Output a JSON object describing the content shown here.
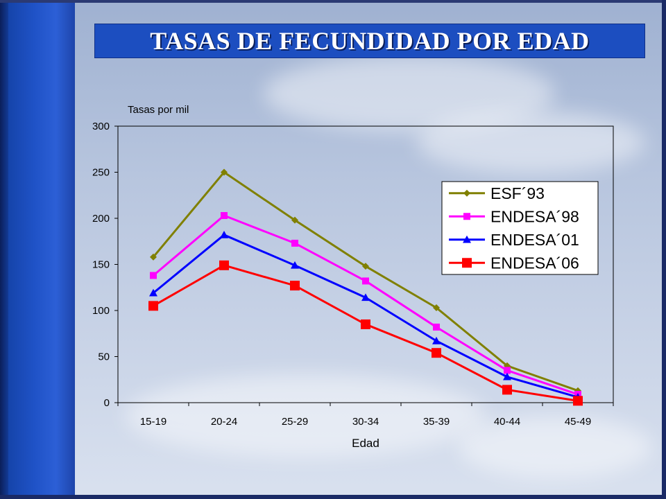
{
  "title": "TASAS DE FECUNDIDAD POR EDAD",
  "chart_data": {
    "type": "line",
    "title": "",
    "ylabel": "Tasas por mil",
    "xlabel": "Edad",
    "ylim": [
      0,
      300
    ],
    "yticks": [
      0,
      50,
      100,
      150,
      200,
      250,
      300
    ],
    "grid": false,
    "legend_position": "right",
    "categories": [
      "15-19",
      "20-24",
      "25-29",
      "30-34",
      "35-39",
      "40-44",
      "45-49"
    ],
    "series": [
      {
        "name": "ESF´93",
        "color": "#808000",
        "marker": "diamond",
        "values": [
          158,
          250,
          198,
          148,
          103,
          40,
          13
        ]
      },
      {
        "name": "ENDESA´98",
        "color": "#ff00ff",
        "marker": "square",
        "values": [
          138,
          203,
          173,
          132,
          82,
          35,
          9
        ]
      },
      {
        "name": "ENDESA´01",
        "color": "#0000ff",
        "marker": "triangle",
        "values": [
          119,
          182,
          149,
          114,
          67,
          28,
          6
        ]
      },
      {
        "name": "ENDESA´06",
        "color": "#ff0000",
        "marker": "square-large",
        "values": [
          105,
          149,
          127,
          85,
          54,
          14,
          2
        ]
      }
    ]
  }
}
